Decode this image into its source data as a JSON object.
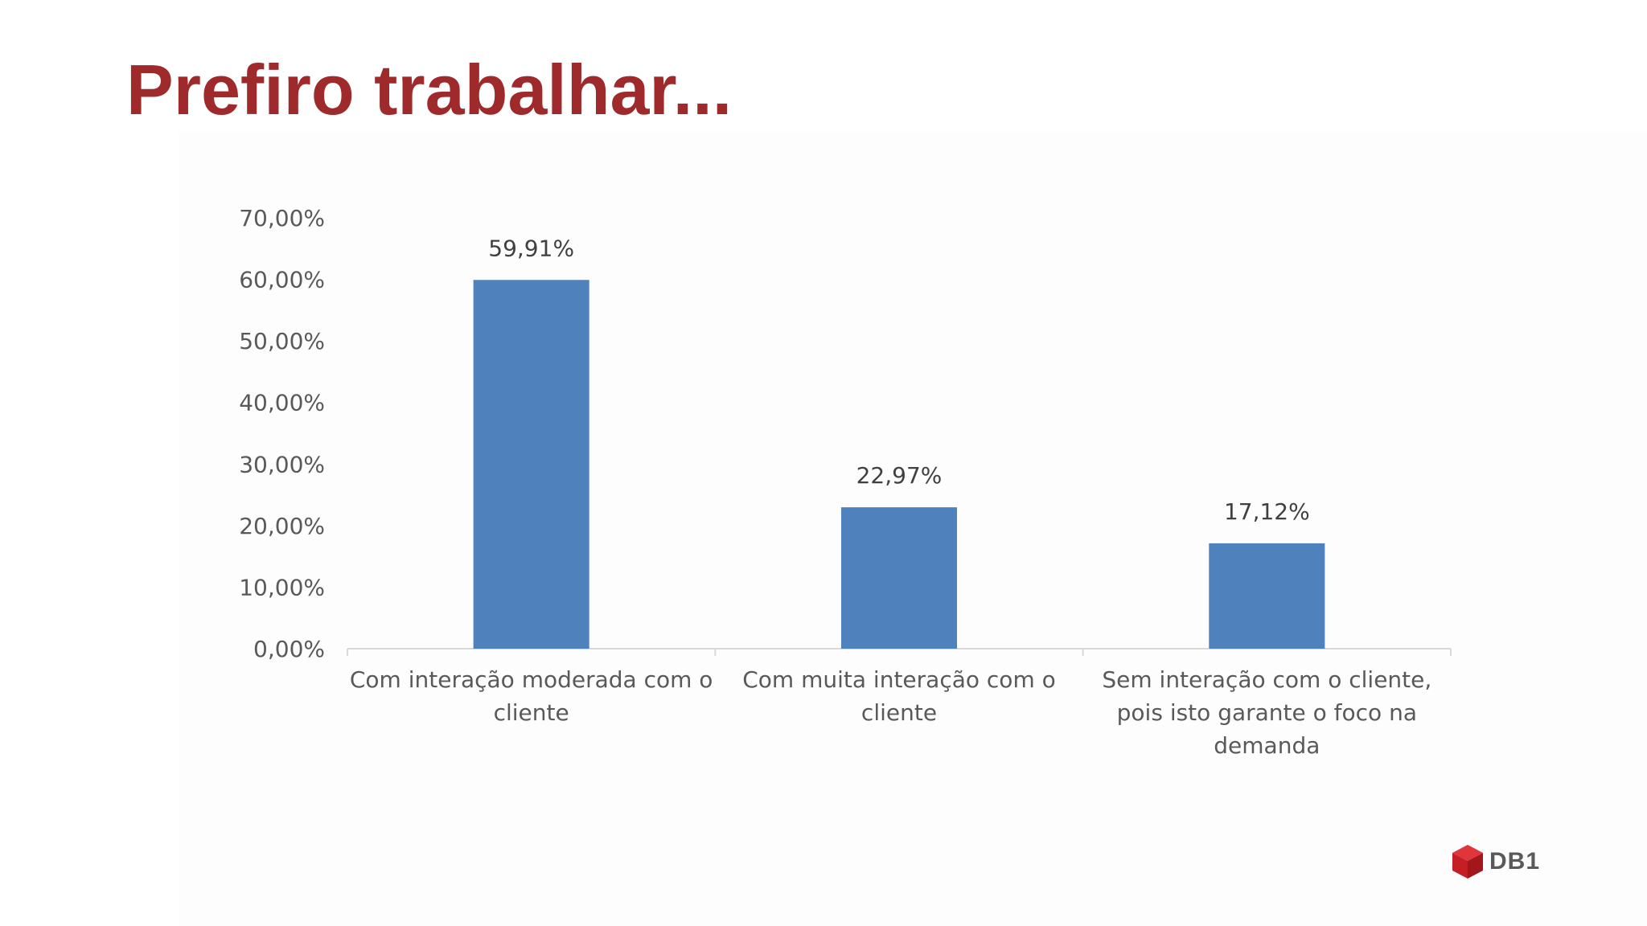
{
  "slide": {
    "title": "Prefiro trabalhar...",
    "logo_text": "DB1"
  },
  "colors": {
    "title": "#9e2a2b",
    "bar": "#4f81bd",
    "axis_line": "#d9d9d9",
    "logo_red": "#d6262c"
  },
  "chart_data": {
    "type": "bar",
    "title": "",
    "xlabel": "",
    "ylabel": "",
    "categories": [
      [
        "Com interação moderada com o",
        "cliente"
      ],
      [
        "Com muita interação com o",
        "cliente"
      ],
      [
        "Sem interação com o cliente,",
        "pois isto garante o foco na",
        "demanda"
      ]
    ],
    "values": [
      59.91,
      22.97,
      17.12
    ],
    "data_labels": [
      "59,91%",
      "22,97%",
      "17,12%"
    ],
    "ylim": [
      0,
      70
    ],
    "y_ticks": [
      0,
      10,
      20,
      30,
      40,
      50,
      60,
      70
    ],
    "y_tick_labels": [
      "0,00%",
      "10,00%",
      "20,00%",
      "30,00%",
      "40,00%",
      "50,00%",
      "60,00%",
      "70,00%"
    ],
    "grid": false,
    "legend": "none"
  }
}
